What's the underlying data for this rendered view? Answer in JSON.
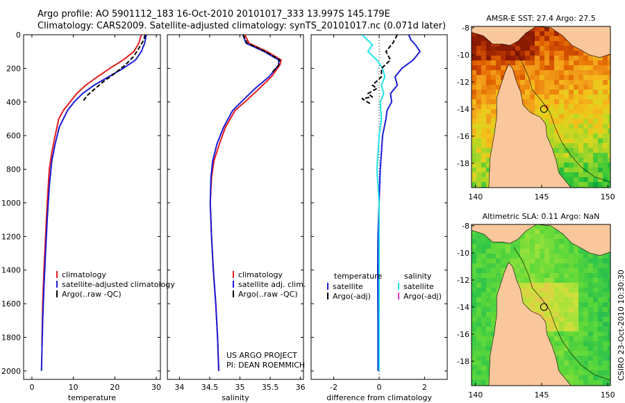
{
  "title_line1": "Argo profile: AO 5901112_183 16-Oct-2010 20101017_333 13.997S 145.179E",
  "title_line2": "Climatology: CARS2009. Satellite-adjusted climatology: synTS_20101017.nc (0.071d later)",
  "credit_line1": "US ARGO PROJECT",
  "credit_line2": "PI: DEAN ROEMMICH",
  "timestamp": "CSIRO 23-Oct-2010 10:30:30",
  "colors": {
    "climatology": "#e41a1c",
    "satellite": "#1a1ad8",
    "argo": "#000000",
    "salinity_satellite": "#22e3e8",
    "salinity_argo": "#e036d8",
    "land": "#f9c79b"
  },
  "chart_data": [
    {
      "type": "line",
      "xlabel": "temperature",
      "ylabel": "",
      "xlim": [
        -2,
        31
      ],
      "ylim": [
        2050,
        0
      ],
      "xticks": [
        0,
        10,
        20,
        30
      ],
      "yticks": [
        0,
        200,
        400,
        600,
        800,
        1000,
        1200,
        1400,
        1600,
        1800,
        2000
      ],
      "legend": {
        "placement": "bottom-right",
        "entries": [
          "climatology",
          "satellite-adjusted climatology",
          "Argo(..raw -QC)"
        ]
      },
      "series": [
        {
          "name": "climatology",
          "color": "climatology",
          "x": [
            26.4,
            25.8,
            24.6,
            22.0,
            18.8,
            15.8,
            13.0,
            10.8,
            9.2,
            7.6,
            6.5,
            5.6,
            4.8,
            4.2,
            3.7,
            3.3,
            2.9,
            2.6,
            2.4
          ],
          "y": [
            0,
            50,
            100,
            150,
            200,
            250,
            300,
            350,
            400,
            450,
            500,
            600,
            700,
            800,
            1000,
            1200,
            1400,
            1600,
            1850
          ]
        },
        {
          "name": "satellite-adjusted climatology",
          "color": "satellite",
          "x": [
            27.6,
            27.2,
            26.4,
            25.0,
            22.0,
            18.5,
            15.0,
            12.2,
            10.2,
            8.6,
            7.6,
            6.6,
            5.6,
            4.8,
            4.2,
            3.7,
            3.3,
            2.9,
            2.6,
            2.4,
            2.3
          ],
          "y": [
            0,
            50,
            100,
            150,
            200,
            250,
            300,
            350,
            400,
            450,
            500,
            550,
            650,
            750,
            900,
            1100,
            1300,
            1500,
            1700,
            1900,
            2000
          ]
        },
        {
          "name": "Argo(..raw -QC)",
          "color": "argo",
          "x": [
            27.3,
            27.0,
            25.8,
            24.5,
            22.5,
            20.0,
            17.2,
            14.8,
            13.4,
            12.2
          ],
          "y": [
            0,
            30,
            80,
            130,
            180,
            230,
            280,
            330,
            360,
            400
          ]
        }
      ]
    },
    {
      "type": "line",
      "xlabel": "salinity",
      "ylabel": "",
      "xlim": [
        33.8,
        36.05
      ],
      "ylim": [
        2050,
        0
      ],
      "xticks": [
        34,
        34.5,
        35,
        35.5,
        36
      ],
      "legend": {
        "placement": "bottom-right",
        "entries": [
          "climatology",
          "satellite adj. clim.",
          "Argo(..raw -QC)"
        ]
      },
      "series": [
        {
          "name": "climatology",
          "color": "climatology",
          "x": [
            35.08,
            35.15,
            35.45,
            35.68,
            35.66,
            35.52,
            35.32,
            35.08,
            34.92,
            34.76,
            34.66,
            34.57,
            34.53,
            34.51,
            34.53,
            34.56,
            34.6,
            34.63,
            34.65
          ],
          "y": [
            0,
            50,
            100,
            150,
            180,
            250,
            320,
            400,
            450,
            550,
            650,
            750,
            850,
            1000,
            1200,
            1400,
            1600,
            1800,
            2000
          ]
        },
        {
          "name": "satellite adj. clim.",
          "color": "satellite",
          "x": [
            35.05,
            35.1,
            35.4,
            35.64,
            35.64,
            35.48,
            35.25,
            35.02,
            34.88,
            34.73,
            34.62,
            34.55,
            34.52,
            34.51,
            34.53,
            34.56,
            34.6,
            34.63,
            34.65
          ],
          "y": [
            0,
            50,
            100,
            150,
            180,
            250,
            320,
            400,
            450,
            550,
            650,
            750,
            850,
            1000,
            1200,
            1400,
            1600,
            1800,
            2000
          ]
        },
        {
          "name": "Argo(..raw -QC)",
          "color": "argo",
          "x": [
            35.05,
            35.12,
            35.42,
            35.66,
            35.64,
            35.52
          ],
          "y": [
            0,
            50,
            100,
            150,
            180,
            230
          ]
        }
      ]
    },
    {
      "type": "line",
      "xlabel": "difference from climatology",
      "ylabel": "",
      "xlim": [
        -3,
        3
      ],
      "ylim": [
        2050,
        0
      ],
      "xticks": [
        -2,
        0,
        2
      ],
      "legend": {
        "placement": "bottom",
        "entries": [
          "temperature",
          "satellite",
          "Argo(-adj)",
          "salinity",
          "satellite",
          "Argo(-adj)"
        ]
      },
      "series": [
        {
          "name": "satellite",
          "color": "satellite",
          "x": [
            1.3,
            1.4,
            1.6,
            1.8,
            1.5,
            1.0,
            0.7,
            0.8,
            0.5,
            0.55,
            0.35,
            0.3,
            0.15,
            0.1,
            0.05,
            0.02,
            0.0,
            -0.05,
            -0.06,
            -0.05,
            -0.05
          ],
          "y": [
            0,
            30,
            60,
            100,
            150,
            200,
            250,
            300,
            350,
            400,
            450,
            500,
            600,
            700,
            800,
            900,
            1000,
            1200,
            1400,
            1700,
            2000
          ]
        },
        {
          "name": "satellite",
          "color": "salinity_satellite",
          "x": [
            -0.75,
            -0.6,
            -0.3,
            -0.5,
            -0.1,
            0.15,
            0.25,
            0.1,
            0.2,
            0.05,
            0.1,
            0.0,
            -0.05,
            -0.1,
            -0.05,
            0.0,
            0.0,
            0.0,
            0.0
          ],
          "y": [
            0,
            20,
            60,
            100,
            150,
            200,
            250,
            300,
            350,
            400,
            500,
            600,
            700,
            800,
            900,
            1000,
            1200,
            1500,
            2000
          ]
        },
        {
          "name": "Argo(-adj)",
          "color": "argo",
          "x": [
            0.8,
            0.6,
            0.3,
            0.5,
            0.1,
            0.1,
            -0.3,
            -0.1,
            -0.5,
            -0.3,
            -0.75,
            -0.4
          ],
          "y": [
            0,
            50,
            100,
            150,
            200,
            250,
            300,
            320,
            350,
            370,
            380,
            410
          ]
        }
      ]
    },
    {
      "type": "heatmap",
      "title": "AMSR-E SST: 27.4 Argo: 27.5",
      "xlim": [
        139.7,
        150.2
      ],
      "ylim": [
        -19.8,
        -7.9
      ],
      "xticks": [
        140,
        145,
        150
      ],
      "yticks": [
        -8,
        -10,
        -12,
        -14,
        -16,
        -18
      ],
      "marker": {
        "lon": 145.179,
        "lat": -13.997
      }
    },
    {
      "type": "heatmap",
      "title": "Altimetric SLA: 0.11 Argo: NaN",
      "xlim": [
        139.7,
        150.2
      ],
      "ylim": [
        -19.8,
        -7.9
      ],
      "xticks": [
        140,
        145,
        150
      ],
      "yticks": [
        -8,
        -10,
        -12,
        -14,
        -16,
        -18
      ],
      "marker": {
        "lon": 145.179,
        "lat": -13.997
      }
    }
  ]
}
